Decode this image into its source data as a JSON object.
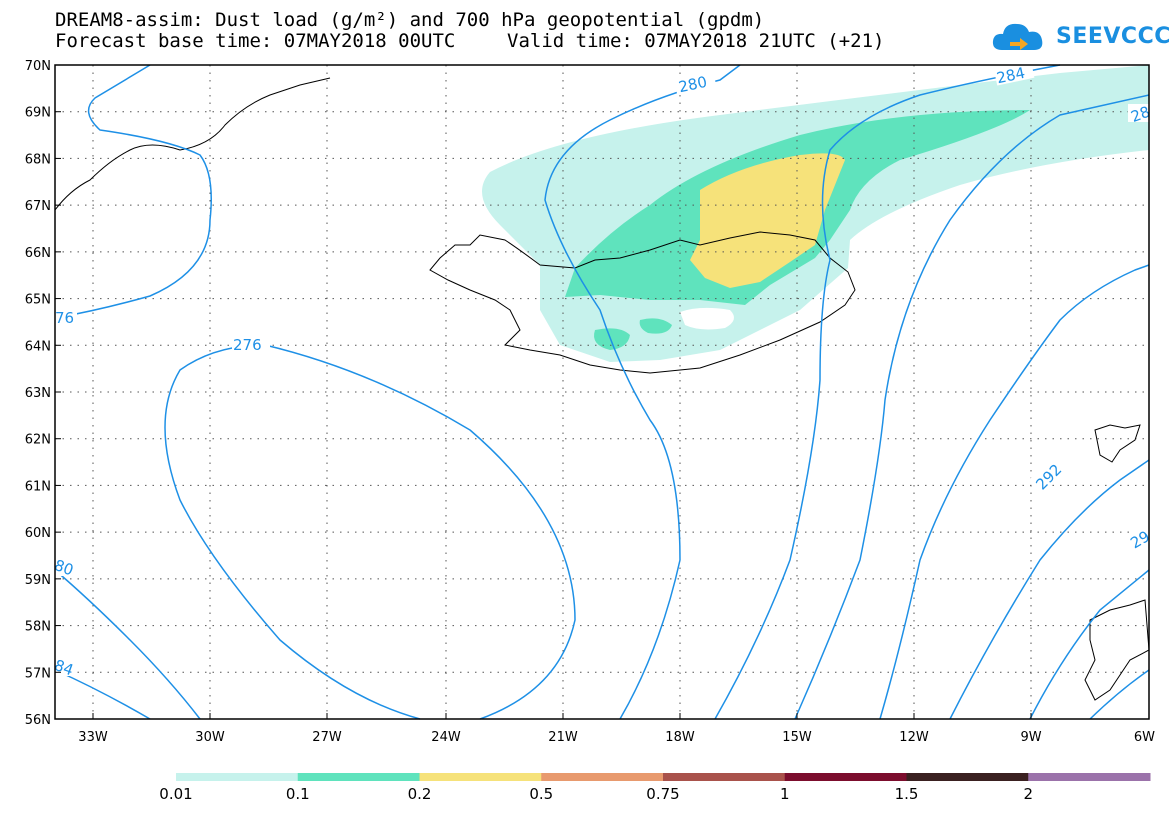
{
  "header": {
    "title_line1": "DREAM8-assim: Dust load (g/m²) and 700 hPa geopotential (gpdm)",
    "title_line2_left": "Forecast base time: 07MAY2018 00UTC",
    "title_line2_right": "Valid time: 07MAY2018 21UTC (+21)"
  },
  "logo": {
    "text": "SEEVCCC",
    "icon": "cloud-icon",
    "color": "#1a8fe0"
  },
  "map": {
    "lat_labels": [
      "70N",
      "69N",
      "68N",
      "67N",
      "66N",
      "65N",
      "64N",
      "63N",
      "62N",
      "61N",
      "60N",
      "59N",
      "58N",
      "57N",
      "56N"
    ],
    "lon_labels": [
      "33W",
      "30W",
      "27W",
      "24W",
      "21W",
      "18W",
      "15W",
      "12W",
      "9W",
      "6W"
    ],
    "contour_labels": [
      "280",
      "284",
      "28",
      "76",
      "276",
      "292",
      "29",
      "80",
      "84",
      "8"
    ]
  },
  "colorbar": {
    "colors": [
      "#c6f2ec",
      "#5fe3bd",
      "#f6e27a",
      "#e89a6e",
      "#a9524b",
      "#7c0d2d",
      "#3a2020",
      "#9b72aa"
    ],
    "labels": [
      "0.01",
      "0.1",
      "0.2",
      "0.5",
      "0.75",
      "1",
      "1.5",
      "2"
    ]
  }
}
